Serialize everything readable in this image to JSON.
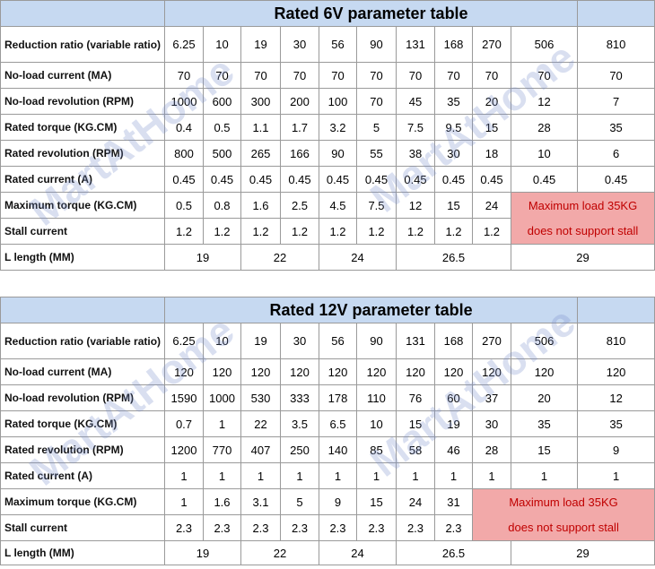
{
  "label_col": [
    "Reduction ratio (variable ratio)",
    "No-load current (MA)",
    "No-load revolution (RPM)",
    "Rated torque (KG.CM)",
    "Rated revolution (RPM)",
    "Rated current (A)",
    "Maximum torque (KG.CM)",
    "Stall current",
    "L length (MM)"
  ],
  "table6v": {
    "title": "Rated 6V parameter table",
    "ratios": [
      "6.25",
      "10",
      "19",
      "30",
      "56",
      "90",
      "131",
      "168",
      "270",
      "506",
      "810"
    ],
    "no_load_current": [
      "70",
      "70",
      "70",
      "70",
      "70",
      "70",
      "70",
      "70",
      "70",
      "70",
      "70"
    ],
    "no_load_rev": [
      "1000",
      "600",
      "300",
      "200",
      "100",
      "70",
      "45",
      "35",
      "20",
      "12",
      "7"
    ],
    "rated_torque": [
      "0.4",
      "0.5",
      "1.1",
      "1.7",
      "3.2",
      "5",
      "7.5",
      "9.5",
      "15",
      "28",
      "35"
    ],
    "rated_rev": [
      "800",
      "500",
      "265",
      "166",
      "90",
      "55",
      "38",
      "30",
      "18",
      "10",
      "6"
    ],
    "rated_current": [
      "0.45",
      "0.45",
      "0.45",
      "0.45",
      "0.45",
      "0.45",
      "0.45",
      "0.45",
      "0.45",
      "0.45",
      "0.45"
    ],
    "max_torque": [
      "0.5",
      "0.8",
      "1.6",
      "2.5",
      "4.5",
      "7.5",
      "12",
      "15",
      "24"
    ],
    "stall_current": [
      "1.2",
      "1.2",
      "1.2",
      "1.2",
      "1.2",
      "1.2",
      "1.2",
      "1.2",
      "1.2"
    ],
    "note_line1": "Maximum load 35KG",
    "note_line2": "does not support stall",
    "lengths": [
      "19",
      "22",
      "24",
      "26.5",
      "29"
    ]
  },
  "table12v": {
    "title": "Rated 12V parameter table",
    "ratios": [
      "6.25",
      "10",
      "19",
      "30",
      "56",
      "90",
      "131",
      "168",
      "270",
      "506",
      "810"
    ],
    "no_load_current": [
      "120",
      "120",
      "120",
      "120",
      "120",
      "120",
      "120",
      "120",
      "120",
      "120",
      "120"
    ],
    "no_load_rev": [
      "1590",
      "1000",
      "530",
      "333",
      "178",
      "110",
      "76",
      "60",
      "37",
      "20",
      "12"
    ],
    "rated_torque": [
      "0.7",
      "1",
      "22",
      "3.5",
      "6.5",
      "10",
      "15",
      "19",
      "30",
      "35",
      "35"
    ],
    "rated_rev": [
      "1200",
      "770",
      "407",
      "250",
      "140",
      "85",
      "58",
      "46",
      "28",
      "15",
      "9"
    ],
    "rated_current": [
      "1",
      "1",
      "1",
      "1",
      "1",
      "1",
      "1",
      "1",
      "1",
      "1",
      "1"
    ],
    "max_torque": [
      "1",
      "1.6",
      "3.1",
      "5",
      "9",
      "15",
      "24",
      "31"
    ],
    "stall_current": [
      "2.3",
      "2.3",
      "2.3",
      "2.3",
      "2.3",
      "2.3",
      "2.3",
      "2.3"
    ],
    "note_line1": "Maximum load 35KG",
    "note_line2": "does not support stall",
    "lengths": [
      "19",
      "22",
      "24",
      "26.5",
      "29"
    ]
  },
  "watermark": "MartAtHome"
}
